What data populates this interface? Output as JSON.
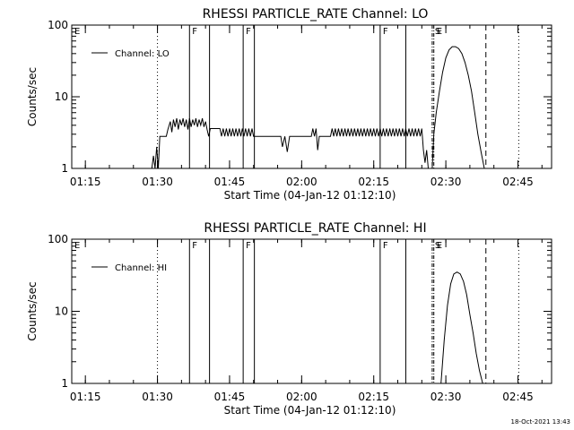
{
  "footer": {
    "timestamp": "18-Oct-2021 13:43"
  },
  "chart_data": [
    {
      "type": "line",
      "title": "RHESSI PARTICLE_RATE Channel: LO",
      "xlabel": "Start Time (04-Jan-12 01:12:10)",
      "ylabel": "Counts/sec",
      "yscale": "log",
      "xlim": [
        "01:12:10",
        "02:52:00"
      ],
      "ylim": [
        1,
        100
      ],
      "x_ticks": [
        "01:15",
        "01:30",
        "01:45",
        "02:00",
        "02:15",
        "02:30",
        "02:45"
      ],
      "y_ticks": [
        "1",
        "10",
        "100"
      ],
      "legend": {
        "entries": [
          "Channel: LO"
        ],
        "position": "upper-left"
      },
      "markers": [
        {
          "label": "E",
          "time": "01:12:10",
          "style": "none"
        },
        {
          "label": "",
          "time": "01:30:00",
          "style": "dotted"
        },
        {
          "label": "F",
          "time": "01:36:40",
          "style": "solid"
        },
        {
          "label": "",
          "time": "01:40:50",
          "style": "solid"
        },
        {
          "label": "F",
          "time": "01:47:50",
          "style": "solid"
        },
        {
          "label": "",
          "time": "01:50:10",
          "style": "solid"
        },
        {
          "label": "F",
          "time": "02:16:20",
          "style": "solid"
        },
        {
          "label": "",
          "time": "02:21:40",
          "style": "solid"
        },
        {
          "label": "S",
          "time": "02:27:10",
          "style": "dash-dot"
        },
        {
          "label": "E",
          "time": "02:27:30",
          "style": "dash-dot"
        },
        {
          "label": "",
          "time": "02:38:20",
          "style": "dashed"
        },
        {
          "label": "",
          "time": "02:45:10",
          "style": "dotted"
        }
      ],
      "series": [
        {
          "name": "Channel: LO",
          "segments": [
            {
              "x": [
                "01:28:50",
                "01:29:10",
                "01:29:30",
                "01:29:50",
                "01:30:10",
                "01:30:30",
                "01:31:10",
                "01:31:50",
                "01:32:10",
                "01:32:40",
                "01:33:00",
                "01:33:20",
                "01:33:40",
                "01:34:00",
                "01:34:20",
                "01:34:40",
                "01:35:00",
                "01:35:20",
                "01:35:40",
                "01:36:00",
                "01:36:20",
                "01:36:40",
                "01:37:00",
                "01:37:20",
                "01:37:40",
                "01:38:00",
                "01:38:20",
                "01:38:40",
                "01:39:00",
                "01:39:20",
                "01:39:40",
                "01:40:00",
                "01:40:20",
                "01:40:40",
                "01:41:00",
                "01:41:30",
                "01:42:00",
                "01:42:30",
                "01:43:00",
                "01:43:20",
                "01:43:40",
                "01:44:00",
                "01:44:20",
                "01:44:40",
                "01:45:00",
                "01:45:20",
                "01:45:40",
                "01:46:00",
                "01:46:20",
                "01:46:40",
                "01:47:00",
                "01:47:20",
                "01:47:40",
                "01:48:00",
                "01:48:20",
                "01:48:40",
                "01:49:00",
                "01:49:20",
                "01:49:40",
                "01:50:00",
                "01:50:30",
                "01:51:00",
                "01:52:00",
                "01:53:00",
                "01:54:00",
                "01:55:00",
                "01:55:40",
                "01:56:00",
                "01:56:30",
                "01:57:00",
                "01:57:30",
                "01:58:00",
                "01:59:00",
                "02:00:00",
                "02:01:00",
                "02:02:00",
                "02:02:20",
                "02:02:40",
                "02:03:00",
                "02:03:20",
                "02:03:40",
                "02:04:00",
                "02:05:00",
                "02:06:00",
                "02:06:20",
                "02:06:40",
                "02:07:00",
                "02:07:20",
                "02:07:40",
                "02:08:00",
                "02:08:20",
                "02:08:40",
                "02:09:00",
                "02:09:20",
                "02:09:40",
                "02:10:00",
                "02:10:20",
                "02:10:40",
                "02:11:00",
                "02:11:20",
                "02:11:40",
                "02:12:00",
                "02:12:20",
                "02:12:40",
                "02:13:00",
                "02:13:20",
                "02:13:40",
                "02:14:00",
                "02:14:20",
                "02:14:40",
                "02:15:00",
                "02:15:20",
                "02:15:40",
                "02:16:00",
                "02:16:20",
                "02:16:40",
                "02:17:00",
                "02:17:20",
                "02:17:40",
                "02:18:00",
                "02:18:20",
                "02:18:40",
                "02:19:00",
                "02:19:20",
                "02:19:40",
                "02:20:00",
                "02:20:20",
                "02:20:40",
                "02:21:00",
                "02:21:20",
                "02:21:40",
                "02:22:00",
                "02:22:20",
                "02:22:40",
                "02:23:00",
                "02:23:20",
                "02:23:40",
                "02:24:00",
                "02:24:20",
                "02:24:40",
                "02:25:00",
                "02:25:20",
                "02:25:40",
                "02:26:00",
                "02:26:20"
              ],
              "y": [
                1,
                1.5,
                1,
                2,
                1,
                2.8,
                2.8,
                2.8,
                3.5,
                4.5,
                3.2,
                4.8,
                3.8,
                5,
                3.5,
                4.8,
                4,
                5,
                3.8,
                4.8,
                3.5,
                5,
                3.8,
                4.8,
                4,
                5,
                3.8,
                4.8,
                4,
                5,
                3.8,
                4.5,
                3.5,
                2.8,
                3.6,
                3.6,
                3.6,
                3.6,
                3.6,
                2.8,
                3.6,
                2.8,
                3.6,
                2.8,
                3.6,
                2.8,
                3.6,
                2.8,
                3.6,
                2.8,
                3.6,
                2.8,
                3.6,
                2.8,
                3.6,
                2.8,
                3.6,
                2.8,
                3.6,
                2.8,
                2.8,
                2.8,
                2.8,
                2.8,
                2.8,
                2.8,
                2.8,
                2,
                2.8,
                1.7,
                2.8,
                2.8,
                2.8,
                2.8,
                2.8,
                2.8,
                3.6,
                2.8,
                3.6,
                1.8,
                2.8,
                2.8,
                2.8,
                2.8,
                3.6,
                2.8,
                3.6,
                2.8,
                3.6,
                2.8,
                3.6,
                2.8,
                3.6,
                2.8,
                3.6,
                2.8,
                3.6,
                2.8,
                3.6,
                2.8,
                3.6,
                2.8,
                3.6,
                2.8,
                3.6,
                2.8,
                3.6,
                2.8,
                3.6,
                2.8,
                3.6,
                2.8,
                3.6,
                2.8,
                3.6,
                2.8,
                3.6,
                2.8,
                3.6,
                2.8,
                3.6,
                2.8,
                3.6,
                2.8,
                3.6,
                2.8,
                3.6,
                2.8,
                3.6,
                2.8,
                3.6,
                2.8,
                3.6,
                2.8,
                3.6,
                2.8,
                3.6,
                2.8,
                3.6,
                2.8,
                3.6,
                1.8,
                1.2,
                1.8,
                1
              ]
            },
            {
              "x": [
                "02:27:10",
                "02:27:30",
                "02:28:00",
                "02:28:40",
                "02:29:20",
                "02:30:00",
                "02:30:40",
                "02:31:20",
                "02:32:00",
                "02:32:40",
                "02:33:20",
                "02:34:00",
                "02:34:40",
                "02:35:20",
                "02:36:00",
                "02:36:40",
                "02:37:20",
                "02:38:00"
              ],
              "y": [
                1,
                3,
                6,
                12,
                22,
                35,
                45,
                50,
                50,
                47,
                40,
                30,
                20,
                12,
                6,
                3,
                1.7,
                1
              ]
            }
          ]
        }
      ]
    },
    {
      "type": "line",
      "title": "RHESSI PARTICLE_RATE Channel: HI",
      "xlabel": "Start Time (04-Jan-12 01:12:10)",
      "ylabel": "Counts/sec",
      "yscale": "log",
      "xlim": [
        "01:12:10",
        "02:52:00"
      ],
      "ylim": [
        1,
        100
      ],
      "x_ticks": [
        "01:15",
        "01:30",
        "01:45",
        "02:00",
        "02:15",
        "02:30",
        "02:45"
      ],
      "y_ticks": [
        "1",
        "10",
        "100"
      ],
      "legend": {
        "entries": [
          "Channel: HI"
        ],
        "position": "upper-left"
      },
      "markers": [
        {
          "label": "E",
          "time": "01:12:10",
          "style": "none"
        },
        {
          "label": "",
          "time": "01:30:00",
          "style": "dotted"
        },
        {
          "label": "F",
          "time": "01:36:40",
          "style": "solid"
        },
        {
          "label": "",
          "time": "01:40:50",
          "style": "solid"
        },
        {
          "label": "F",
          "time": "01:47:50",
          "style": "solid"
        },
        {
          "label": "",
          "time": "01:50:10",
          "style": "solid"
        },
        {
          "label": "F",
          "time": "02:16:20",
          "style": "solid"
        },
        {
          "label": "",
          "time": "02:21:40",
          "style": "solid"
        },
        {
          "label": "S",
          "time": "02:27:10",
          "style": "dash-dot"
        },
        {
          "label": "E",
          "time": "02:27:30",
          "style": "dash-dot"
        },
        {
          "label": "",
          "time": "02:38:20",
          "style": "dashed"
        },
        {
          "label": "",
          "time": "02:45:10",
          "style": "dotted"
        }
      ],
      "series": [
        {
          "name": "Channel: HI",
          "segments": [
            {
              "x": [
                "02:29:00",
                "02:29:40",
                "02:30:20",
                "02:31:00",
                "02:31:40",
                "02:32:20",
                "02:33:00",
                "02:33:40",
                "02:34:20",
                "02:35:00",
                "02:35:40",
                "02:36:20",
                "02:37:00",
                "02:37:40"
              ],
              "y": [
                1,
                4,
                12,
                24,
                33,
                35,
                33,
                26,
                17,
                9,
                5,
                2.6,
                1.5,
                1
              ]
            }
          ]
        }
      ]
    }
  ]
}
